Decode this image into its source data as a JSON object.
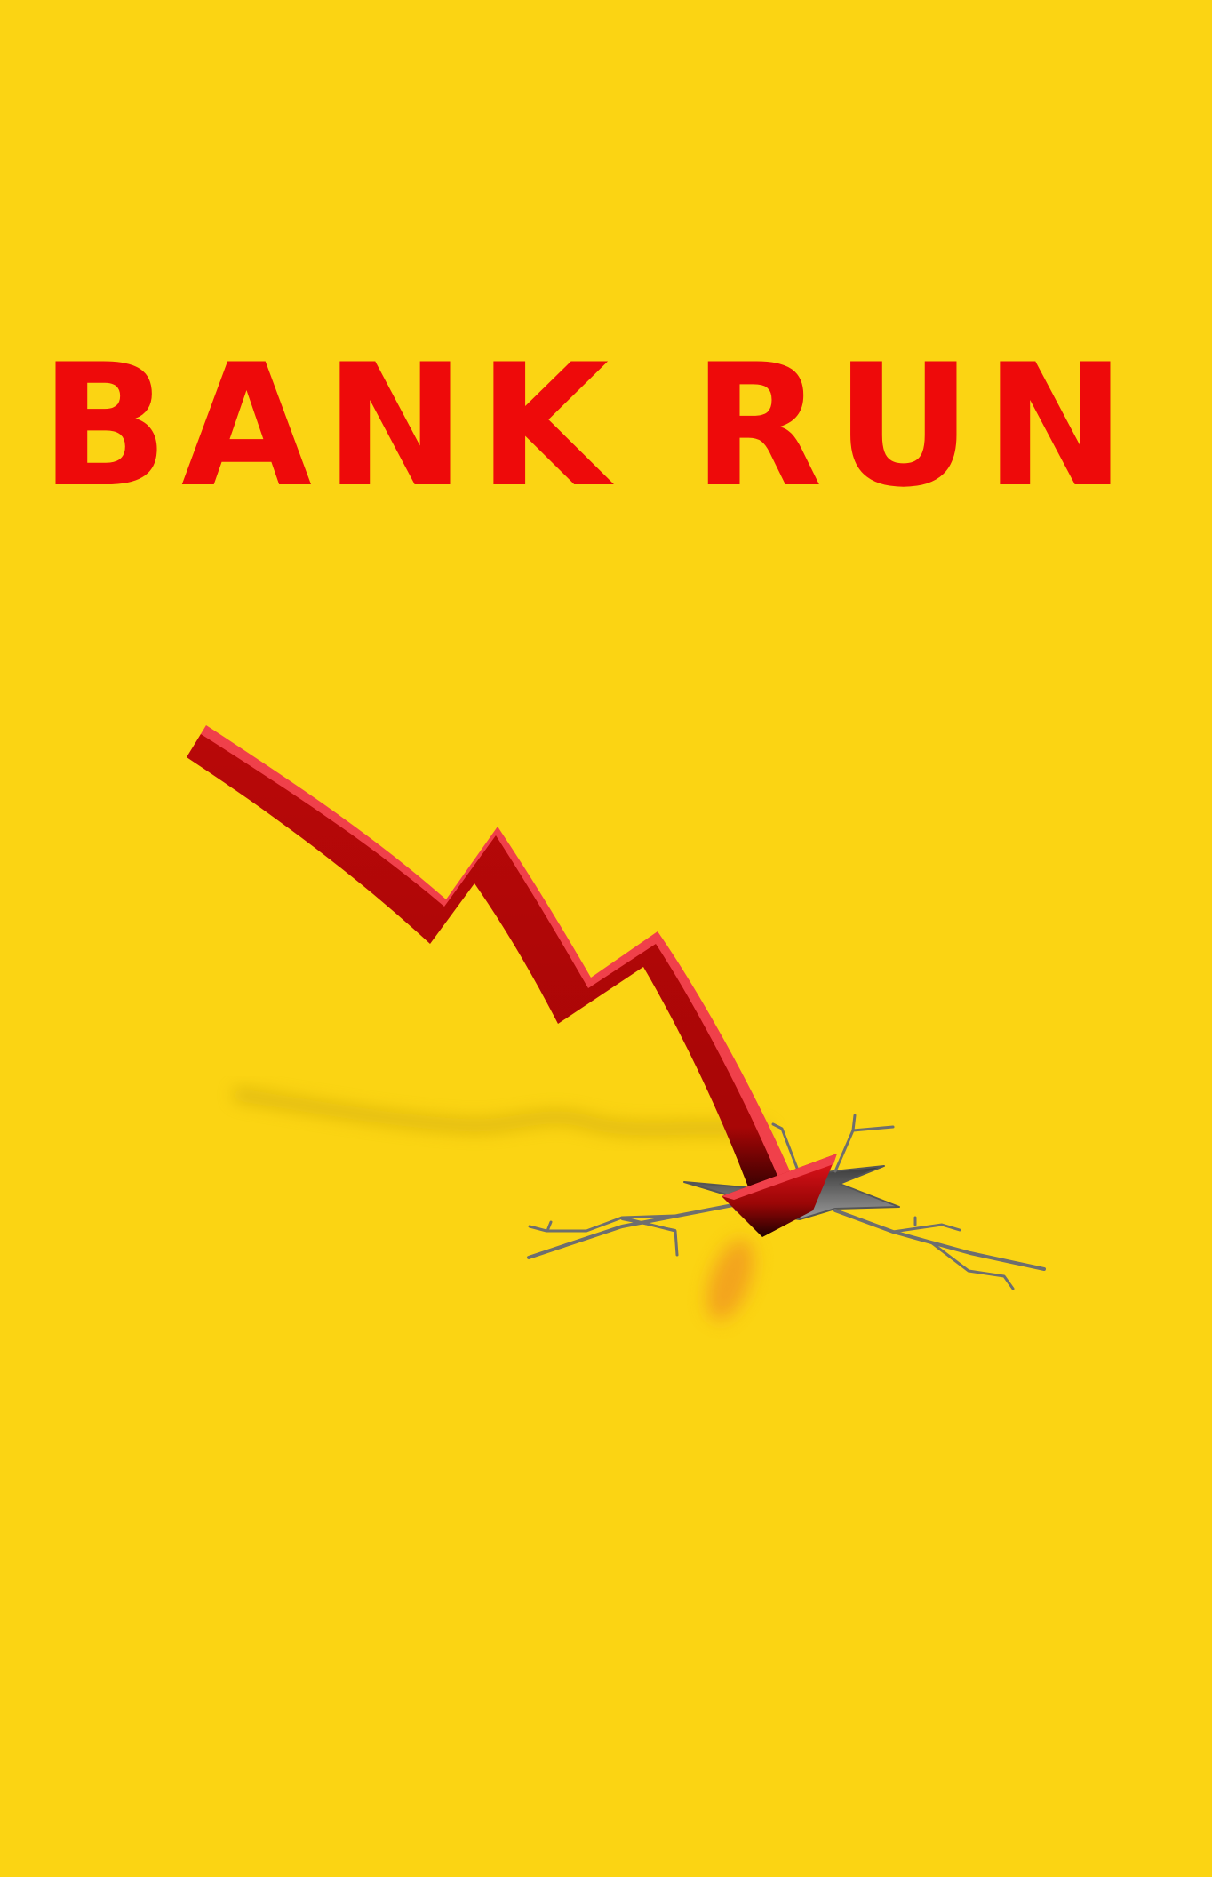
{
  "poster": {
    "title": "BANK RUN",
    "background_color": "#FBD413",
    "title_color": "#EE0A0A",
    "arrow_color": "#C00A0A",
    "arrow_highlight_color": "#F0404A",
    "crack_color": "#6E6E6E",
    "arrow_icon": "falling-arrow-icon",
    "crack_icon": "ground-crack-icon"
  }
}
